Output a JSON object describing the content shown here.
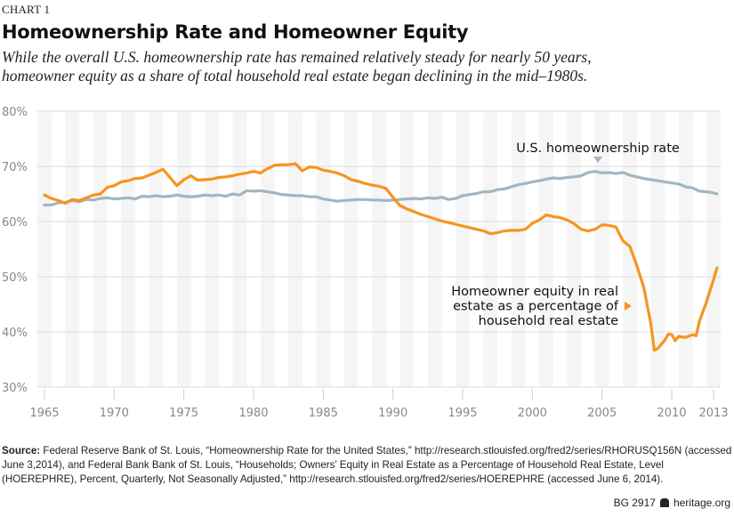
{
  "kicker": "CHART 1",
  "title": "Homeownership Rate and Homeowner Equity",
  "subtitle_line1": "While the overall U.S. homeownership rate has remained relatively steady for nearly 50 years,",
  "subtitle_line2": "homeowner equity as a share of total household real estate  began declining in the mid–1980s.",
  "source_label": "Source:",
  "source_text": " Federal Reserve Bank of St. Louis, “Homeownership Rate for the United States,” http://research.stlouisfed.org/fred2/series/RHORUSQ156N (accessed June 3,2014), and Federal Bank Bank of St. Louis, “Households; Owners’ Equity in Real Estate as a Percentage of Household Real Estate, Level (HOEREPHRE), Percent, Quarterly, Not Seasonally Adjusted,” http://research.stlouisfed.org/fred2/series/HOEREPHRE (accessed June 6, 2014).",
  "footer_id": "BG 2917",
  "footer_site": "heritage.org",
  "colors": {
    "equity": "#F7941D",
    "homeownership": "#A3B5C0",
    "grid": "#DDDDDD",
    "band": "#F5F5F5",
    "tick_label": "#888888"
  },
  "chart_data": {
    "type": "line",
    "title": "Homeownership Rate and Homeowner Equity",
    "xlabel": "",
    "ylabel": "",
    "xlim": [
      1964.5,
      2013.5
    ],
    "ylim": [
      30,
      80
    ],
    "x_ticks": [
      1965,
      1970,
      1975,
      1980,
      1985,
      1990,
      1995,
      2000,
      2005,
      2010,
      2013
    ],
    "y_ticks": [
      30,
      40,
      50,
      60,
      70,
      80
    ],
    "y_tick_labels": [
      "30%",
      "40%",
      "50%",
      "60%",
      "70%",
      "80%"
    ],
    "grid": true,
    "series": [
      {
        "name": "U.S. homeownership rate",
        "annotation": "U.S. homeownership rate",
        "points": [
          [
            1965,
            63.0
          ],
          [
            1965.5,
            63.0
          ],
          [
            1966,
            63.4
          ],
          [
            1966.5,
            63.5
          ],
          [
            1967,
            63.8
          ],
          [
            1967.5,
            63.6
          ],
          [
            1968,
            64.0
          ],
          [
            1968.5,
            63.9
          ],
          [
            1969,
            64.2
          ],
          [
            1969.5,
            64.3
          ],
          [
            1970,
            64.1
          ],
          [
            1970.5,
            64.2
          ],
          [
            1971,
            64.3
          ],
          [
            1971.5,
            64.1
          ],
          [
            1972,
            64.6
          ],
          [
            1972.5,
            64.5
          ],
          [
            1973,
            64.7
          ],
          [
            1973.5,
            64.5
          ],
          [
            1974,
            64.6
          ],
          [
            1974.5,
            64.8
          ],
          [
            1975,
            64.6
          ],
          [
            1975.5,
            64.5
          ],
          [
            1976,
            64.6
          ],
          [
            1976.5,
            64.8
          ],
          [
            1977,
            64.7
          ],
          [
            1977.5,
            64.8
          ],
          [
            1978,
            64.6
          ],
          [
            1978.5,
            65.0
          ],
          [
            1979,
            64.8
          ],
          [
            1979.5,
            65.6
          ],
          [
            1980,
            65.5
          ],
          [
            1980.5,
            65.6
          ],
          [
            1981,
            65.4
          ],
          [
            1981.5,
            65.2
          ],
          [
            1982,
            64.9
          ],
          [
            1982.5,
            64.8
          ],
          [
            1983,
            64.7
          ],
          [
            1983.5,
            64.7
          ],
          [
            1984,
            64.5
          ],
          [
            1984.5,
            64.5
          ],
          [
            1985,
            64.1
          ],
          [
            1985.5,
            63.9
          ],
          [
            1986,
            63.7
          ],
          [
            1986.5,
            63.8
          ],
          [
            1987,
            63.9
          ],
          [
            1987.5,
            64.0
          ],
          [
            1988,
            64.0
          ],
          [
            1988.5,
            63.9
          ],
          [
            1989,
            63.9
          ],
          [
            1989.5,
            63.8
          ],
          [
            1990,
            63.9
          ],
          [
            1990.5,
            64.0
          ],
          [
            1991,
            64.1
          ],
          [
            1991.5,
            64.2
          ],
          [
            1992,
            64.1
          ],
          [
            1992.5,
            64.3
          ],
          [
            1993,
            64.2
          ],
          [
            1993.5,
            64.4
          ],
          [
            1994,
            64.0
          ],
          [
            1994.5,
            64.2
          ],
          [
            1995,
            64.7
          ],
          [
            1995.5,
            64.9
          ],
          [
            1996,
            65.1
          ],
          [
            1996.5,
            65.4
          ],
          [
            1997,
            65.4
          ],
          [
            1997.5,
            65.8
          ],
          [
            1998,
            65.9
          ],
          [
            1998.5,
            66.3
          ],
          [
            1999,
            66.7
          ],
          [
            1999.5,
            66.9
          ],
          [
            2000,
            67.2
          ],
          [
            2000.5,
            67.4
          ],
          [
            2001,
            67.7
          ],
          [
            2001.5,
            67.9
          ],
          [
            2002,
            67.8
          ],
          [
            2002.5,
            68.0
          ],
          [
            2003,
            68.1
          ],
          [
            2003.5,
            68.3
          ],
          [
            2004,
            68.9
          ],
          [
            2004.5,
            69.1
          ],
          [
            2005,
            68.8
          ],
          [
            2005.5,
            68.9
          ],
          [
            2006,
            68.7
          ],
          [
            2006.5,
            68.9
          ],
          [
            2007,
            68.4
          ],
          [
            2007.5,
            68.1
          ],
          [
            2008,
            67.8
          ],
          [
            2008.5,
            67.6
          ],
          [
            2009,
            67.4
          ],
          [
            2009.5,
            67.2
          ],
          [
            2010,
            67.0
          ],
          [
            2010.5,
            66.8
          ],
          [
            2011,
            66.3
          ],
          [
            2011.5,
            66.1
          ],
          [
            2012,
            65.5
          ],
          [
            2012.5,
            65.4
          ],
          [
            2013,
            65.2
          ],
          [
            2013.25,
            65.0
          ]
        ]
      },
      {
        "name": "Homeowner equity in real estate as a percentage of household real estate",
        "annotation": "Homeowner equity in real estate as a percentage of household real estate",
        "points": [
          [
            1965,
            64.8
          ],
          [
            1965.5,
            64.2
          ],
          [
            1966,
            63.8
          ],
          [
            1966.5,
            63.3
          ],
          [
            1967,
            64.0
          ],
          [
            1967.5,
            63.8
          ],
          [
            1968,
            64.3
          ],
          [
            1968.5,
            64.8
          ],
          [
            1969,
            65.0
          ],
          [
            1969.5,
            66.2
          ],
          [
            1970,
            66.5
          ],
          [
            1970.5,
            67.2
          ],
          [
            1971,
            67.4
          ],
          [
            1971.5,
            67.8
          ],
          [
            1972,
            67.9
          ],
          [
            1972.5,
            68.4
          ],
          [
            1973,
            68.9
          ],
          [
            1973.5,
            69.5
          ],
          [
            1974,
            68.0
          ],
          [
            1974.5,
            66.5
          ],
          [
            1975,
            67.6
          ],
          [
            1975.5,
            68.3
          ],
          [
            1976,
            67.5
          ],
          [
            1976.5,
            67.6
          ],
          [
            1977,
            67.7
          ],
          [
            1977.5,
            68.0
          ],
          [
            1978,
            68.1
          ],
          [
            1978.5,
            68.3
          ],
          [
            1979,
            68.6
          ],
          [
            1979.5,
            68.8
          ],
          [
            1980,
            69.1
          ],
          [
            1980.5,
            68.8
          ],
          [
            1981,
            69.6
          ],
          [
            1981.5,
            70.2
          ],
          [
            1982,
            70.3
          ],
          [
            1982.5,
            70.3
          ],
          [
            1983,
            70.5
          ],
          [
            1983.5,
            69.2
          ],
          [
            1984,
            69.9
          ],
          [
            1984.5,
            69.8
          ],
          [
            1985,
            69.3
          ],
          [
            1985.5,
            69.1
          ],
          [
            1986,
            68.8
          ],
          [
            1986.5,
            68.3
          ],
          [
            1987,
            67.6
          ],
          [
            1987.5,
            67.3
          ],
          [
            1988,
            66.9
          ],
          [
            1988.5,
            66.6
          ],
          [
            1989,
            66.4
          ],
          [
            1989.5,
            66.0
          ],
          [
            1990,
            64.4
          ],
          [
            1990.5,
            62.9
          ],
          [
            1991,
            62.3
          ],
          [
            1991.5,
            61.8
          ],
          [
            1992,
            61.3
          ],
          [
            1992.5,
            60.9
          ],
          [
            1993,
            60.5
          ],
          [
            1993.5,
            60.1
          ],
          [
            1994,
            59.8
          ],
          [
            1994.5,
            59.5
          ],
          [
            1995,
            59.2
          ],
          [
            1995.5,
            58.9
          ],
          [
            1996,
            58.6
          ],
          [
            1996.5,
            58.3
          ],
          [
            1997,
            57.8
          ],
          [
            1997.5,
            58.0
          ],
          [
            1998,
            58.3
          ],
          [
            1998.5,
            58.4
          ],
          [
            1999,
            58.4
          ],
          [
            1999.5,
            58.6
          ],
          [
            2000,
            59.7
          ],
          [
            2000.5,
            60.3
          ],
          [
            2001,
            61.2
          ],
          [
            2001.5,
            60.9
          ],
          [
            2002,
            60.7
          ],
          [
            2002.5,
            60.3
          ],
          [
            2003,
            59.6
          ],
          [
            2003.5,
            58.6
          ],
          [
            2004,
            58.3
          ],
          [
            2004.5,
            58.6
          ],
          [
            2005,
            59.4
          ],
          [
            2005.5,
            59.3
          ],
          [
            2006,
            59.0
          ],
          [
            2006.5,
            56.5
          ],
          [
            2007,
            55.5
          ],
          [
            2007.5,
            52.0
          ],
          [
            2008,
            48.0
          ],
          [
            2008.5,
            41.5
          ],
          [
            2008.75,
            36.7
          ],
          [
            2009,
            37.0
          ],
          [
            2009.5,
            38.5
          ],
          [
            2009.75,
            39.6
          ],
          [
            2010,
            39.5
          ],
          [
            2010.25,
            38.4
          ],
          [
            2010.5,
            39.2
          ],
          [
            2011,
            39.0
          ],
          [
            2011.5,
            39.5
          ],
          [
            2011.75,
            39.3
          ],
          [
            2012,
            42.0
          ],
          [
            2012.5,
            45.5
          ],
          [
            2013,
            49.5
          ],
          [
            2013.25,
            51.6
          ]
        ]
      }
    ]
  }
}
